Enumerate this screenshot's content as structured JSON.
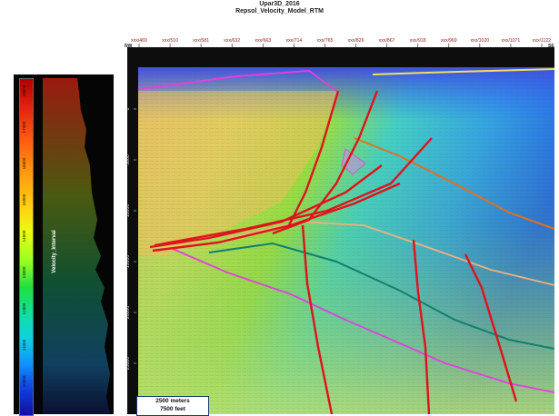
{
  "title": {
    "line1": "Upar3D_2016",
    "line2": "Repsol_Velocity_Model_RTM"
  },
  "xaxis": {
    "ticks": [
      "xxx/469",
      "xxx/510",
      "xxx/581",
      "xxx/632",
      "xxx/663",
      "xxx/714",
      "xxx/765",
      "xxx/826",
      "xxx/867",
      "xxx/918",
      "xxx/969",
      "xxx/1020",
      "xxx/1071",
      "xxx/1122"
    ],
    "left_dir": "NW",
    "right_dir": "SE",
    "tick_color": "#8b1a1a"
  },
  "yaxis": {
    "label": "TVDSS (feet above 0 foot)",
    "ticks": [
      "0",
      "5000",
      "10000",
      "15000",
      "20000",
      "25000"
    ]
  },
  "colorbar": {
    "label": "Velocity_Interval",
    "ticks": [
      "18000",
      "17000",
      "16000",
      "15000",
      "14000",
      "13000",
      "12000",
      "11000",
      "10000",
      "9000"
    ]
  },
  "scale_bar": {
    "meters": "2500 meters",
    "feet": "7500 feet"
  },
  "colors": {
    "fault": "#e0121c",
    "horizon_top": "#f0e060",
    "horizon_magenta": "#e040e0",
    "horizon_orange": "#e07020",
    "horizon_teal": "#108070",
    "horizon_peach": "#f0b080"
  }
}
